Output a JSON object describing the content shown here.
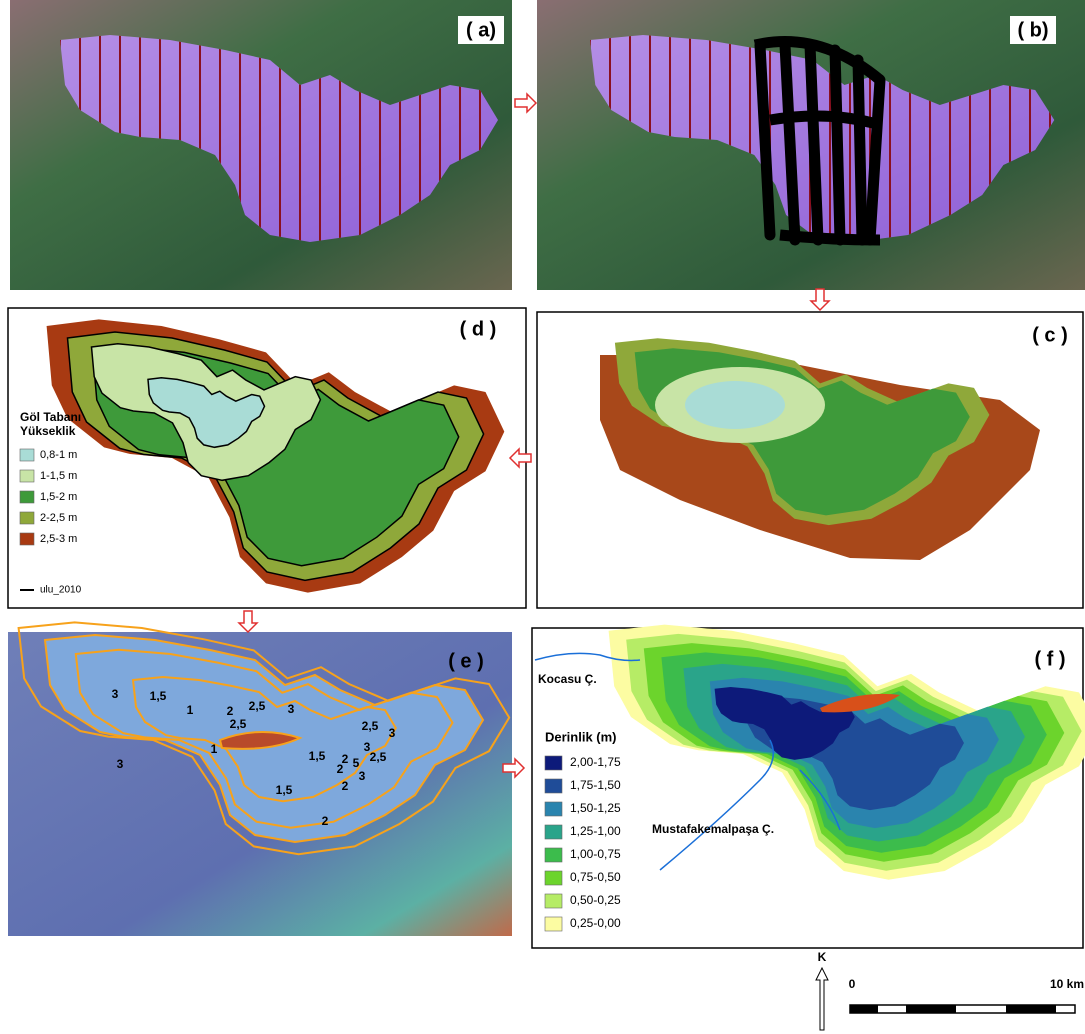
{
  "panels": {
    "a": "( a)",
    "b": "( b)",
    "c": "( c )",
    "d": "( d )",
    "e": "( e )",
    "f": "( f )"
  },
  "legend_d": {
    "title_lines": [
      "Göl Tabanı",
      "Yükseklik"
    ],
    "items": [
      {
        "label": "0,8-1 m",
        "color": "#a9dcd6"
      },
      {
        "label": "1-1,5 m",
        "color": "#c8e4a6"
      },
      {
        "label": "1,5-2 m",
        "color": "#3e9a3a"
      },
      {
        "label": "2-2,5 m",
        "color": "#8fa83a"
      },
      {
        "label": "2,5-3 m",
        "color": "#a83a12"
      }
    ],
    "line_item": "ulu_2010"
  },
  "panel_e": {
    "contour_labels": [
      "3",
      "1,5",
      "1",
      "2",
      "2,5",
      "2,5",
      "3",
      "1",
      "3",
      "1,5",
      "2",
      "5",
      "3",
      "2,5",
      "3",
      "2,5",
      "3",
      "2",
      "1,5",
      "2",
      "2"
    ]
  },
  "panel_f": {
    "rivers": [
      "Kocasu Ç.",
      "Mustafakemalpaşa Ç."
    ],
    "legend_title": "Derinlik (m)",
    "items": [
      {
        "label": "2,00-1,75",
        "color": "#0d1a7a"
      },
      {
        "label": "1,75-1,50",
        "color": "#1f4c98"
      },
      {
        "label": "1,50-1,25",
        "color": "#2a84ae"
      },
      {
        "label": "1,25-1,00",
        "color": "#2aa48a"
      },
      {
        "label": "1,00-0,75",
        "color": "#3cbc4c"
      },
      {
        "label": "0,75-0,50",
        "color": "#6cd42c"
      },
      {
        "label": "0,50-0,25",
        "color": "#b6ec66"
      },
      {
        "label": "0,25-0,00",
        "color": "#fcfca2"
      }
    ]
  },
  "scale": {
    "north": "K",
    "start": "0",
    "end": "10 km"
  }
}
